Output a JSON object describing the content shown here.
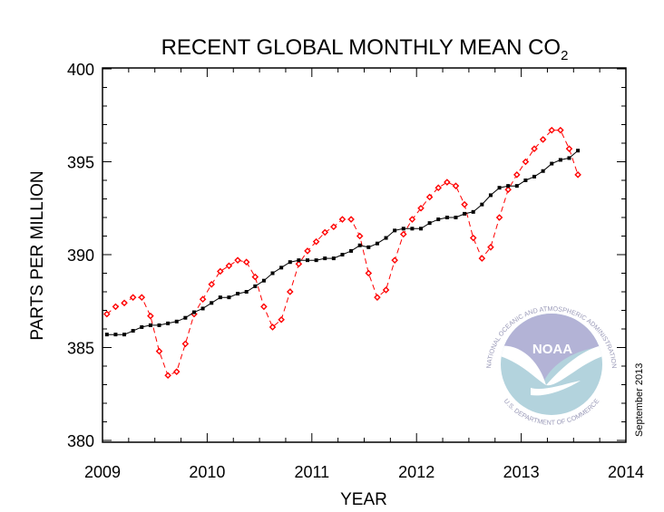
{
  "chart_data": {
    "type": "line",
    "title": "RECENT GLOBAL MONTHLY MEAN CO",
    "title_subscript": "2",
    "xlabel": "YEAR",
    "ylabel": "PARTS PER MILLION",
    "xlim": [
      2009,
      2014
    ],
    "ylim": [
      380,
      400
    ],
    "x_ticks": [
      "2009",
      "2010",
      "2011",
      "2012",
      "2013",
      "2014"
    ],
    "y_ticks": [
      "380",
      "385",
      "390",
      "395",
      "400"
    ],
    "grid": false,
    "annotation": "September 2013",
    "x": [
      "2009-01",
      "2009-02",
      "2009-03",
      "2009-04",
      "2009-05",
      "2009-06",
      "2009-07",
      "2009-08",
      "2009-09",
      "2009-10",
      "2009-11",
      "2009-12",
      "2010-01",
      "2010-02",
      "2010-03",
      "2010-04",
      "2010-05",
      "2010-06",
      "2010-07",
      "2010-08",
      "2010-09",
      "2010-10",
      "2010-11",
      "2010-12",
      "2011-01",
      "2011-02",
      "2011-03",
      "2011-04",
      "2011-05",
      "2011-06",
      "2011-07",
      "2011-08",
      "2011-09",
      "2011-10",
      "2011-11",
      "2011-12",
      "2012-01",
      "2012-02",
      "2012-03",
      "2012-04",
      "2012-05",
      "2012-06",
      "2012-07",
      "2012-08",
      "2012-09",
      "2012-10",
      "2012-11",
      "2012-12",
      "2013-01",
      "2013-02",
      "2013-03",
      "2013-04",
      "2013-05",
      "2013-06",
      "2013-07"
    ],
    "series": [
      {
        "color": "#ff0000",
        "style": "dashed",
        "marker": "open-diamond",
        "values": [
          386.8,
          387.2,
          387.4,
          387.7,
          387.7,
          386.7,
          384.8,
          383.5,
          383.7,
          385.2,
          386.8,
          387.6,
          388.4,
          389.1,
          389.4,
          389.7,
          389.6,
          388.8,
          387.2,
          386.1,
          386.5,
          388.0,
          389.5,
          390.2,
          390.7,
          391.2,
          391.5,
          391.9,
          391.9,
          391.0,
          389.0,
          387.7,
          388.1,
          389.7,
          391.1,
          391.9,
          392.5,
          393.1,
          393.6,
          393.9,
          393.7,
          392.7,
          390.9,
          389.8,
          390.4,
          392.0,
          393.5,
          394.3,
          395.0,
          395.7,
          396.2,
          396.7,
          396.7,
          395.7,
          394.3
        ]
      },
      {
        "color": "#000000",
        "style": "solid",
        "marker": "filled-square",
        "values": [
          385.7,
          385.7,
          385.7,
          385.9,
          386.1,
          386.2,
          386.2,
          386.3,
          386.4,
          386.6,
          386.9,
          387.1,
          387.4,
          387.7,
          387.7,
          387.9,
          388.0,
          388.3,
          388.6,
          389.0,
          389.3,
          389.6,
          389.7,
          389.7,
          389.7,
          389.8,
          389.8,
          390.0,
          390.2,
          390.5,
          390.4,
          390.6,
          390.9,
          391.3,
          391.4,
          391.4,
          391.4,
          391.7,
          391.9,
          392.0,
          392.0,
          392.2,
          392.3,
          392.7,
          393.2,
          393.6,
          393.7,
          393.7,
          394.0,
          394.2,
          394.5,
          394.9,
          395.1,
          395.2,
          395.6
        ]
      }
    ]
  },
  "logo": {
    "name": "NOAA",
    "ring_top": "NATIONAL OCEANIC AND ATMOSPHERIC ADMINISTRATION",
    "ring_bottom": "U.S. DEPARTMENT OF COMMERCE",
    "colors": {
      "sky": "#b3b3d6",
      "sea": "#b3d3dd",
      "text": "#9a9ab8"
    }
  }
}
